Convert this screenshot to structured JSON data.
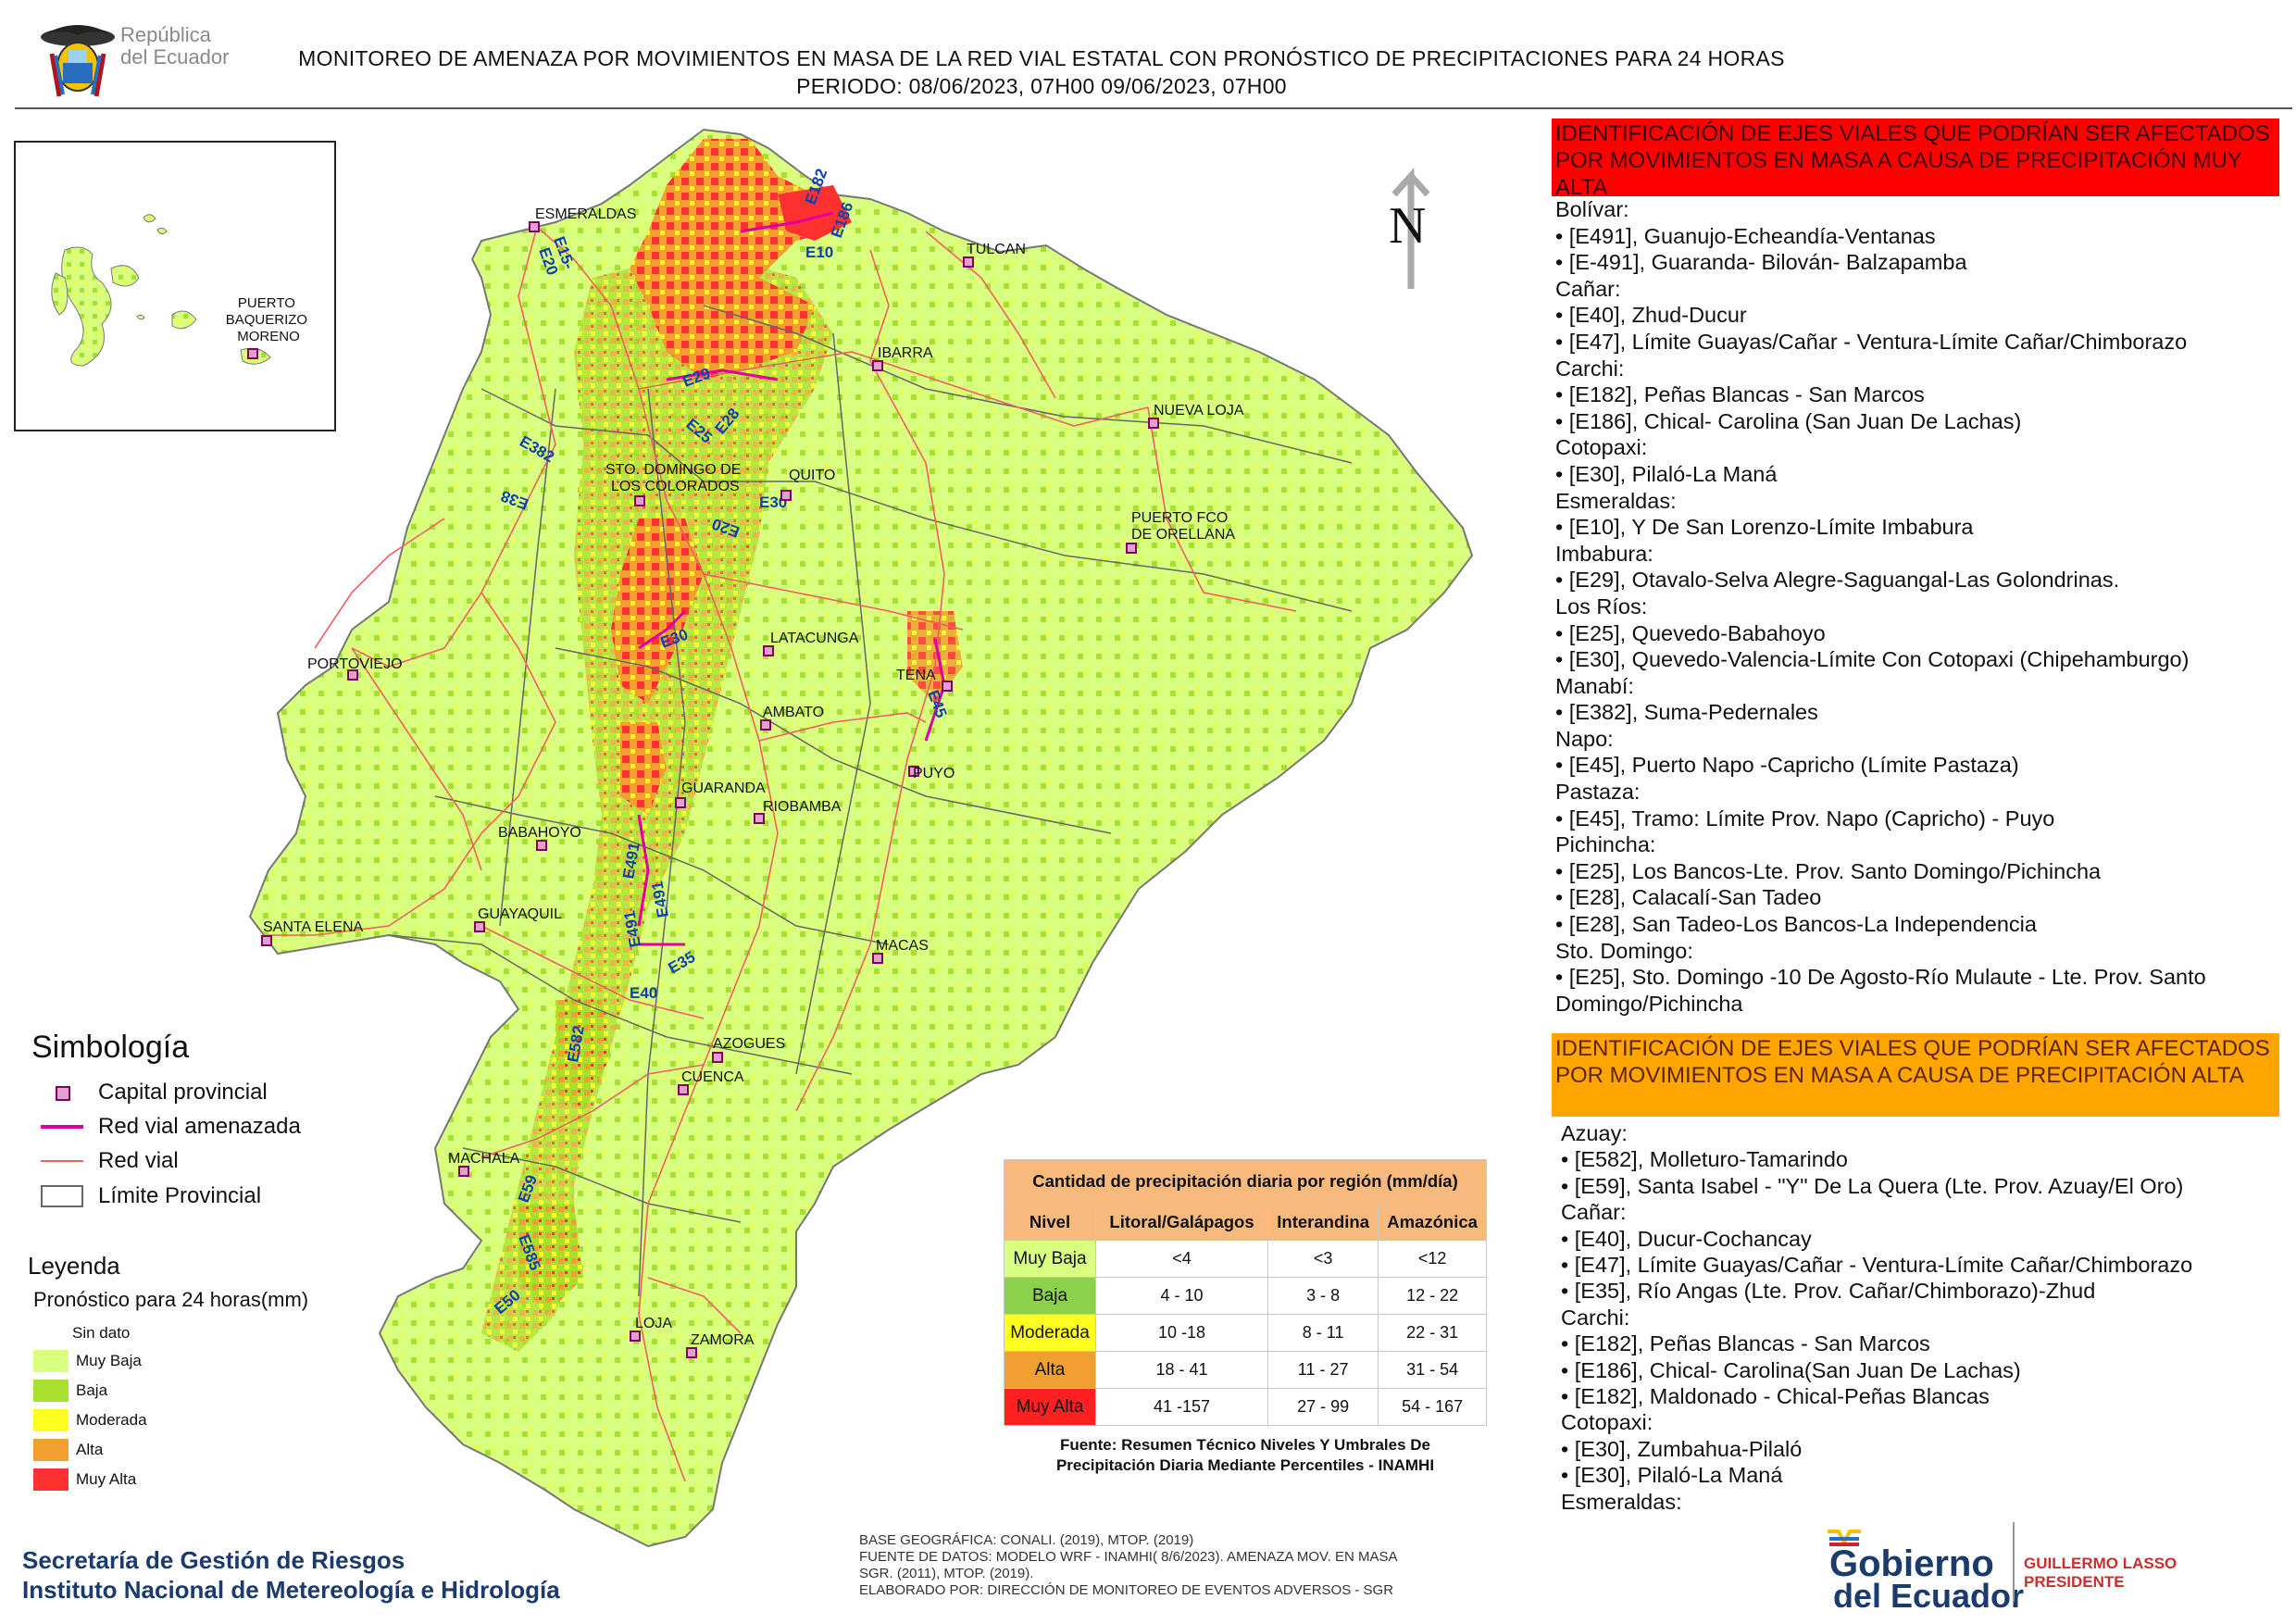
{
  "header": {
    "country_name": "República del Ecuador",
    "country_line1": "República",
    "country_line2": "del Ecuador",
    "title_line1": "MONITOREO DE AMENAZA POR MOVIMIENTOS EN MASA DE LA RED VIAL  ESTATAL  CON PRONÓSTICO  DE  PRECIPITACIONES PARA 24 HORAS",
    "title_line2": "PERIODO: 08/06/2023, 07H00 09/06/2023, 07H00"
  },
  "map": {
    "north_label": "N",
    "inset_place": "PUERTO BAQUERIZO MORENO",
    "inset_lines": [
      "PUERTO",
      "BAQUERIZO",
      "MORENO"
    ],
    "cities": [
      {
        "name": "ESMERALDAS"
      },
      {
        "name": "TULCAN"
      },
      {
        "name": "IBARRA"
      },
      {
        "name": "NUEVA LOJA"
      },
      {
        "name": "STO. DOMINGO DE LOS COLORADOS"
      },
      {
        "name": "QUITO"
      },
      {
        "name": "PUERTO FCO DE ORELLANA"
      },
      {
        "name": "PORTOVIEJO"
      },
      {
        "name": "LATACUNGA"
      },
      {
        "name": "TENA"
      },
      {
        "name": "AMBATO"
      },
      {
        "name": "GUARANDA"
      },
      {
        "name": "PUYO"
      },
      {
        "name": "RIOBAMBA"
      },
      {
        "name": "BABAHOYO"
      },
      {
        "name": "SANTA ELENA"
      },
      {
        "name": "GUAYAQUIL"
      },
      {
        "name": "MACAS"
      },
      {
        "name": "AZOGUES"
      },
      {
        "name": "CUENCA"
      },
      {
        "name": "MACHALA"
      },
      {
        "name": "LOJA"
      },
      {
        "name": "ZAMORA"
      }
    ],
    "city_labels": {
      "esmeraldas": "ESMERALDAS",
      "tulcan": "TULCAN",
      "ibarra": "IBARRA",
      "nueva_loja": "NUEVA LOJA",
      "sto_domingo_1": "STO. DOMINGO DE",
      "sto_domingo_2": "LOS COLORADOS",
      "quito": "QUITO",
      "orellana_1": "PUERTO FCO",
      "orellana_2": "DE ORELLANA",
      "portoviejo": "PORTOVIEJO",
      "latacunga": "LATACUNGA",
      "tena": "TENA",
      "ambato": "AMBATO",
      "guaranda": "GUARANDA",
      "puyo": "PUYO",
      "riobamba": "RIOBAMBA",
      "babahoyo": "BABAHOYO",
      "santa_elena": "SANTA ELENA",
      "guayaquil": "GUAYAQUIL",
      "macas": "MACAS",
      "azogues": "AZOGUES",
      "cuenca": "CUENCA",
      "machala": "MACHALA",
      "loja": "LOJA",
      "zamora": "ZAMORA"
    },
    "road_labels": {
      "e182": "E182",
      "e186": "E186",
      "e10": "E10",
      "e15": "E15-",
      "e20a": "E20",
      "e29": "E29",
      "e25a": "E25",
      "e28": "E28",
      "e382": "E382",
      "e38": "E38",
      "e30a": "E30",
      "e20b": "E20",
      "e30b": "E30",
      "e45": "E45",
      "e491a": "E491",
      "e491b": "E491",
      "e491c": "E491",
      "e35": "E35",
      "e40": "E40",
      "e582": "E582",
      "e59": "E59",
      "e585": "E585",
      "e50": "E50"
    }
  },
  "right_panel": {
    "very_high_header": "IDENTIFICACIÓN DE EJES VIALES QUE PODRÍAN SER AFECTADOS POR MOVIMIENTOS EN MASA A CAUSA DE PRECIPITACIÓN MUY ALTA",
    "very_high_list": [
      "Bolívar:",
      "• [E491], Guanujo-Echeandía-Ventanas",
      "• [E-491], Guaranda- Bilován- Balzapamba",
      "Cañar:",
      "• [E40], Zhud-Ducur",
      "• [E47], Límite Guayas/Cañar - Ventura-Límite Cañar/Chimborazo",
      "Carchi:",
      "• [E182], Peñas Blancas - San Marcos",
      "• [E186], Chical- Carolina (San Juan De Lachas)",
      "Cotopaxi:",
      "• [E30], Pilaló-La Maná",
      "Esmeraldas:",
      "• [E10], Y De San Lorenzo-Límite Imbabura",
      "Imbabura:",
      "• [E29], Otavalo-Selva Alegre-Saguangal-Las Golondrinas.",
      "Los Ríos:",
      "• [E25], Quevedo-Babahoyo",
      "• [E30], Quevedo-Valencia-Límite Con Cotopaxi (Chipehamburgo)",
      "Manabí:",
      "• [E382], Suma-Pedernales",
      "Napo:",
      "• [E45], Puerto Napo -Capricho (Límite Pastaza)",
      "Pastaza:",
      "• [E45], Tramo: Límite Prov. Napo (Capricho) - Puyo",
      "Pichincha:",
      "• [E25], Los Bancos-Lte. Prov. Santo Domingo/Pichincha",
      "• [E28], Calacalí-San Tadeo",
      "• [E28], San Tadeo-Los Bancos-La Independencia",
      "Sto. Domingo:",
      "• [E25], Sto. Domingo -10 De Agosto-Río Mulaute - Lte. Prov. Santo",
      "Domingo/Pichincha"
    ],
    "high_header": "IDENTIFICACIÓN DE EJES VIALES QUE PODRÍAN SER AFECTADOS POR MOVIMIENTOS EN MASA A CAUSA DE PRECIPITACIÓN  ALTA",
    "high_list": [
      "Azuay:",
      "• [E582], Molleturo-Tamarindo",
      "• [E59], Santa Isabel - \"Y\" De La Quera (Lte. Prov. Azuay/El Oro)",
      "Cañar:",
      "• [E40], Ducur-Cochancay",
      "• [E47], Límite Guayas/Cañar - Ventura-Límite Cañar/Chimborazo",
      "• [E35], Río Angas (Lte. Prov. Cañar/Chimborazo)-Zhud",
      "Carchi:",
      "• [E182], Peñas Blancas - San Marcos",
      "• [E186], Chical- Carolina(San Juan De Lachas)",
      "• [E182], Maldonado - Chical-Peñas Blancas",
      "Cotopaxi:",
      "• [E30], Zumbahua-Pilaló",
      "• [E30], Pilaló-La Maná",
      "Esmeraldas:"
    ]
  },
  "symbology": {
    "title": "Simbología",
    "items": [
      {
        "label": "Capital provincial",
        "icon": "capital-marker",
        "color": "#c01890"
      },
      {
        "label": "Red vial amenazada",
        "icon": "threatened-road-line",
        "color": "#e000a0"
      },
      {
        "label": "Red vial",
        "icon": "road-line",
        "color": "#ee6060"
      },
      {
        "label": "Límite Provincial",
        "icon": "province-boundary-box",
        "color": "#666666"
      }
    ]
  },
  "legend": {
    "title": "Leyenda",
    "subtitle": "Pronóstico para 24 horas(mm)",
    "items": [
      {
        "label": "Sin dato",
        "color": "#ffffff"
      },
      {
        "label": "Muy Baja",
        "color": "#d8ff80"
      },
      {
        "label": "Baja",
        "color": "#a8e030"
      },
      {
        "label": "Moderada",
        "color": "#ffff20"
      },
      {
        "label": "Alta",
        "color": "#f0a030"
      },
      {
        "label": "Muy Alta",
        "color": "#ff3030"
      }
    ]
  },
  "precip_table": {
    "title": "Cantidad de precipitación diaria por región (mm/día)",
    "headers": [
      "Nivel",
      "Litoral/Galápagos",
      "Interandina",
      "Amazónica"
    ],
    "rows": [
      {
        "level": "Muy Baja",
        "color": "#d8ff80",
        "values": [
          "<4",
          "<3",
          "<12"
        ]
      },
      {
        "level": "Baja",
        "color": "#8bd24a",
        "values": [
          "4 - 10",
          "3 - 8",
          "12 - 22"
        ]
      },
      {
        "level": "Moderada",
        "color": "#ffff20",
        "values": [
          "10 -18",
          "8 - 11",
          "22 - 31"
        ]
      },
      {
        "level": "Alta",
        "color": "#f0a030",
        "values": [
          "18 - 41",
          "11 - 27",
          "31 - 54"
        ]
      },
      {
        "level": "Muy Alta",
        "color": "#ff2020",
        "values": [
          "41 -157",
          "27 - 99",
          "54 - 167"
        ]
      }
    ],
    "source_line1": "Fuente: Resumen Técnico Niveles Y Umbrales De",
    "source_line2": "Precipitación Diaria Mediante Percentiles - INAMHI"
  },
  "footer": {
    "org_line1": "Secretaría de Gestión de Riesgos",
    "org_line2": "Instituto Nacional de Metereología e Hidrología",
    "notes": [
      "BASE GEOGRÁFICA: CONALI. (2019), MTOP. (2019)",
      "FUENTE DE DATOS: MODELO WRF - INAMHI( 8/6/2023).  AMENAZA MOV. EN MASA",
      "SGR. (2011), MTOP. (2019).",
      "ELABORADO POR: DIRECCIÓN DE MONITOREO DE EVENTOS ADVERSOS - SGR"
    ],
    "gov_logo_line1": "Gobierno",
    "gov_logo_line2": "del Ecuador",
    "president_name": "GUILLERMO LASSO",
    "president_title": "PRESIDENTE"
  }
}
